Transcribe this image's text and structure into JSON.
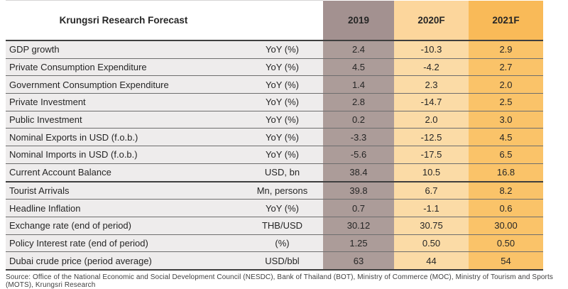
{
  "chart_data": {
    "type": "table",
    "title": "Krungsri Research Forecast",
    "columns": [
      "2019",
      "2020F",
      "2021F"
    ],
    "rows": [
      {
        "label": "GDP growth",
        "unit": "YoY (%)",
        "values": [
          "2.4",
          "-10.3",
          "2.9"
        ],
        "section_end": false
      },
      {
        "label": "Private Consumption Expenditure",
        "unit": "YoY (%)",
        "values": [
          "4.5",
          "-4.2",
          "2.7"
        ],
        "section_end": false
      },
      {
        "label": "Government Consumption Expenditure",
        "unit": "YoY (%)",
        "values": [
          "1.4",
          "2.3",
          "2.0"
        ],
        "section_end": false
      },
      {
        "label": "Private Investment",
        "unit": "YoY (%)",
        "values": [
          "2.8",
          "-14.7",
          "2.5"
        ],
        "section_end": false
      },
      {
        "label": "Public Investment",
        "unit": "YoY (%)",
        "values": [
          "0.2",
          "2.0",
          "3.0"
        ],
        "section_end": false
      },
      {
        "label": "Nominal Exports in USD (f.o.b.)",
        "unit": "YoY (%)",
        "values": [
          "-3.3",
          "-12.5",
          "4.5"
        ],
        "section_end": false
      },
      {
        "label": "Nominal Imports in USD (f.o.b.)",
        "unit": "YoY (%)",
        "values": [
          "-5.6",
          "-17.5",
          "6.5"
        ],
        "section_end": false
      },
      {
        "label": "Current Account Balance",
        "unit": "USD, bn",
        "values": [
          "38.4",
          "10.5",
          "16.8"
        ],
        "section_end": true
      },
      {
        "label": "Tourist Arrivals",
        "unit": "Mn, persons",
        "values": [
          "39.8",
          "6.7",
          "8.2"
        ],
        "section_end": false
      },
      {
        "label": "Headline Inflation",
        "unit": "YoY (%)",
        "values": [
          "0.7",
          "-1.1",
          "0.6"
        ],
        "section_end": false
      },
      {
        "label": "Exchange rate (end of period)",
        "unit": "THB/USD",
        "values": [
          "30.12",
          "30.75",
          "30.00"
        ],
        "section_end": false
      },
      {
        "label": "Policy Interest rate (end of period)",
        "unit": "(%)",
        "values": [
          "1.25",
          "0.50",
          "0.50"
        ],
        "section_end": false
      },
      {
        "label": "Dubai crude price (period average)",
        "unit": "USD/bbl",
        "values": [
          "63",
          "44",
          "54"
        ],
        "section_end": false
      }
    ],
    "layout": {
      "legend_position": "none",
      "grid": "horizontal-rules"
    }
  },
  "source": "Source: Office of the National Economic and Social Development Council (NESDC), Bank of Thailand (BOT), Ministry of Commerce (MOC), Ministry of Tourism and Sports (MOTS), Krungsri Research",
  "colors": {
    "header_2019": "#a39190",
    "cell_2019": "#ac9c99",
    "header_2020f": "#fcd69c",
    "cell_2020f": "#fbdba6",
    "header_2021f": "#f9ba58",
    "cell_2021f": "#fac369",
    "label_bg": "#eeecec",
    "line_thin": "#6e6e6e",
    "line_heavy": "#3f3f3f",
    "text": "#262626"
  }
}
